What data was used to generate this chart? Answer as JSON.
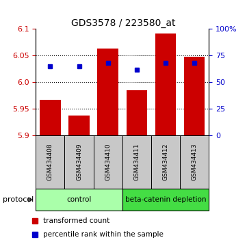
{
  "title": "GDS3578 / 223580_at",
  "samples": [
    "GSM434408",
    "GSM434409",
    "GSM434410",
    "GSM434411",
    "GSM434412",
    "GSM434413"
  ],
  "bar_values": [
    5.967,
    5.937,
    6.063,
    5.985,
    6.092,
    6.048
  ],
  "bar_base": 5.9,
  "percentile_values": [
    65,
    65,
    68,
    62,
    68,
    68
  ],
  "ylim_left": [
    5.9,
    6.1
  ],
  "ylim_right": [
    0,
    100
  ],
  "yticks_left": [
    5.9,
    5.95,
    6.0,
    6.05,
    6.1
  ],
  "yticks_right": [
    0,
    25,
    50,
    75,
    100
  ],
  "bar_color": "#CC0000",
  "dot_color": "#0000CC",
  "groups": [
    {
      "label": "control",
      "indices": [
        0,
        1,
        2
      ],
      "color": "#AAFFAA"
    },
    {
      "label": "beta-catenin depletion",
      "indices": [
        3,
        4,
        5
      ],
      "color": "#44DD44"
    }
  ],
  "protocol_label": "protocol",
  "legend_items": [
    {
      "label": "transformed count",
      "color": "#CC0000"
    },
    {
      "label": "percentile rank within the sample",
      "color": "#0000CC"
    }
  ],
  "sample_bg_color": "#C8C8C8",
  "dotted_lines": [
    5.95,
    6.0,
    6.05
  ]
}
